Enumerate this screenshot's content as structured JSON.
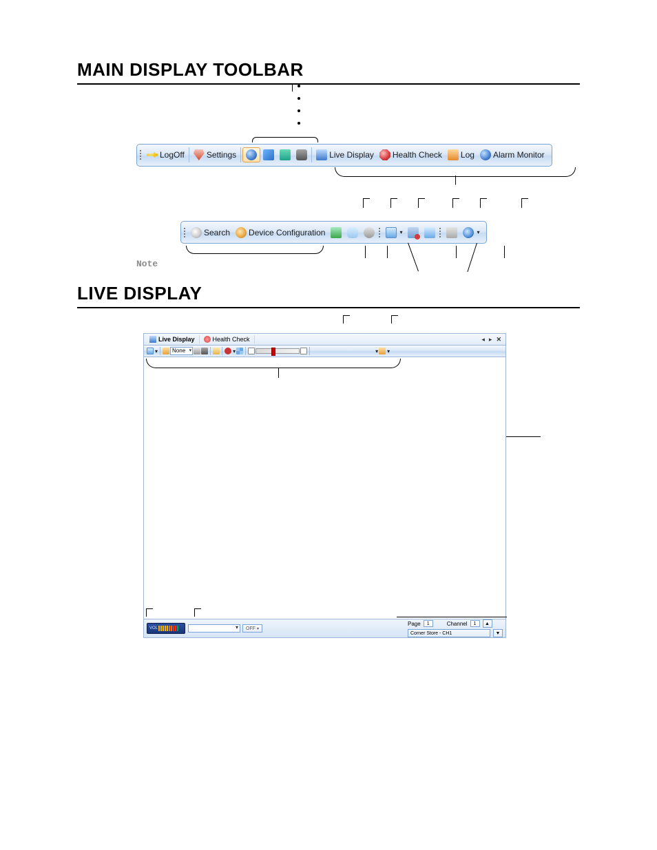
{
  "sections": {
    "title1": "MAIN DISPLAY TOOLBAR",
    "note_label": "Note",
    "title2": "LIVE DISPLAY"
  },
  "colors": {
    "toolbar_border": "#7aa3d6",
    "toolbar_grad_top": "#f5f8fc",
    "toolbar_grad_mid1": "#dbe8f7",
    "toolbar_grad_mid2": "#c6dbf3",
    "toolbar_grad_bot": "#e8f0fb",
    "key_yellow": "#f2c007",
    "settings_red": "#d24a32",
    "icon_blue": "#3f79cc",
    "icon_teal": "#1fa38a",
    "icon_green": "#38a848",
    "icon_grey": "#7b7b7b",
    "icon_orange": "#e58a2f",
    "icon_health": "#d43b3b",
    "lens_grey": "#c8c8c8"
  },
  "toolbar1": {
    "logoff": "LogOff",
    "settings": "Settings",
    "live_display": "Live Display",
    "health_check": "Health Check",
    "log": "Log",
    "alarm_monitor": "Alarm Monitor"
  },
  "toolbar2": {
    "search": "Search",
    "device_config": "Device Configuration"
  },
  "live_display": {
    "tab1": "Live Display",
    "tab2": "Health Check",
    "mini_combo": "None",
    "footer": {
      "vol_label": "VOL",
      "vol_bar_colors": [
        "#f7b500",
        "#f7b500",
        "#f7b500",
        "#f7b500",
        "#f7b500",
        "#ff6a00",
        "#ff6a00",
        "#ff2a00",
        "#ff2a00",
        "#09a53a"
      ],
      "off_label": "OFF",
      "page_label": "Page",
      "channel_label": "Channel",
      "page_value": "1",
      "channel_value": "1",
      "readout": "Corner Store - CH1"
    }
  }
}
